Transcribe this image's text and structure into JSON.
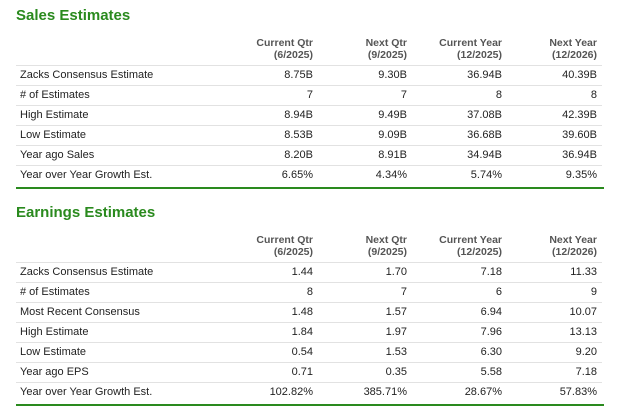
{
  "sections": [
    {
      "title": "Sales Estimates",
      "headers": [
        {
          "name": "Current Qtr",
          "period": "(6/2025)"
        },
        {
          "name": "Next Qtr",
          "period": "(9/2025)"
        },
        {
          "name": "Current Year",
          "period": "(12/2025)"
        },
        {
          "name": "Next Year",
          "period": "(12/2026)"
        }
      ],
      "rows": [
        {
          "label": "Zacks Consensus Estimate",
          "values": [
            "8.75B",
            "9.30B",
            "36.94B",
            "40.39B"
          ]
        },
        {
          "label": "# of Estimates",
          "values": [
            "7",
            "7",
            "8",
            "8"
          ]
        },
        {
          "label": "High Estimate",
          "values": [
            "8.94B",
            "9.49B",
            "37.08B",
            "42.39B"
          ]
        },
        {
          "label": "Low Estimate",
          "values": [
            "8.53B",
            "9.09B",
            "36.68B",
            "39.60B"
          ]
        },
        {
          "label": "Year ago Sales",
          "values": [
            "8.20B",
            "8.91B",
            "34.94B",
            "36.94B"
          ]
        },
        {
          "label": "Year over Year Growth Est.",
          "values": [
            "6.65%",
            "4.34%",
            "5.74%",
            "9.35%"
          ]
        }
      ]
    },
    {
      "title": "Earnings Estimates",
      "headers": [
        {
          "name": "Current Qtr",
          "period": "(6/2025)"
        },
        {
          "name": "Next Qtr",
          "period": "(9/2025)"
        },
        {
          "name": "Current Year",
          "period": "(12/2025)"
        },
        {
          "name": "Next Year",
          "period": "(12/2026)"
        }
      ],
      "rows": [
        {
          "label": "Zacks Consensus Estimate",
          "values": [
            "1.44",
            "1.70",
            "7.18",
            "11.33"
          ]
        },
        {
          "label": "# of Estimates",
          "values": [
            "8",
            "7",
            "6",
            "9"
          ]
        },
        {
          "label": "Most Recent Consensus",
          "values": [
            "1.48",
            "1.57",
            "6.94",
            "10.07"
          ]
        },
        {
          "label": "High Estimate",
          "values": [
            "1.84",
            "1.97",
            "7.96",
            "13.13"
          ]
        },
        {
          "label": "Low Estimate",
          "values": [
            "0.54",
            "1.53",
            "6.30",
            "9.20"
          ]
        },
        {
          "label": "Year ago EPS",
          "values": [
            "0.71",
            "0.35",
            "5.58",
            "7.18"
          ]
        },
        {
          "label": "Year over Year Growth Est.",
          "values": [
            "102.82%",
            "385.71%",
            "28.67%",
            "57.83%"
          ]
        }
      ]
    }
  ]
}
